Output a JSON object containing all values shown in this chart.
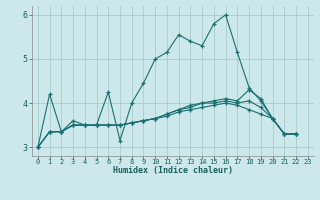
{
  "title": "",
  "xlabel": "Humidex (Indice chaleur)",
  "background_color": "#cce8ea",
  "grid_color": "#aacccc",
  "line_color": "#1a7070",
  "xlim": [
    -0.5,
    23.5
  ],
  "ylim": [
    2.8,
    6.2
  ],
  "xticks": [
    0,
    1,
    2,
    3,
    4,
    5,
    6,
    7,
    8,
    9,
    10,
    11,
    12,
    13,
    14,
    15,
    16,
    17,
    18,
    19,
    20,
    21,
    22,
    23
  ],
  "yticks": [
    3,
    4,
    5,
    6
  ],
  "series": [
    {
      "x": [
        0,
        1,
        2,
        3,
        4,
        5,
        6,
        7,
        8,
        9,
        10,
        11,
        12,
        13,
        14,
        15,
        16,
        17,
        18,
        19,
        20,
        21,
        22
      ],
      "y": [
        3.0,
        4.2,
        3.35,
        3.6,
        3.5,
        3.5,
        4.25,
        3.15,
        4.0,
        4.45,
        5.0,
        5.15,
        5.55,
        5.4,
        5.3,
        5.8,
        6.0,
        5.15,
        4.35,
        4.05,
        3.65,
        3.3,
        3.3
      ]
    },
    {
      "x": [
        0,
        1,
        2,
        3,
        4,
        5,
        6,
        7,
        8,
        9,
        10,
        11,
        12,
        13,
        14,
        15,
        16,
        17,
        18,
        19,
        20,
        21,
        22
      ],
      "y": [
        3.0,
        3.35,
        3.35,
        3.5,
        3.5,
        3.5,
        3.5,
        3.5,
        3.55,
        3.6,
        3.65,
        3.75,
        3.85,
        3.95,
        4.0,
        4.05,
        4.1,
        4.05,
        4.3,
        4.1,
        3.65,
        3.3,
        3.3
      ]
    },
    {
      "x": [
        0,
        1,
        2,
        3,
        4,
        5,
        6,
        7,
        8,
        9,
        10,
        11,
        12,
        13,
        14,
        15,
        16,
        17,
        18,
        19,
        20,
        21,
        22
      ],
      "y": [
        3.0,
        3.35,
        3.35,
        3.5,
        3.5,
        3.5,
        3.5,
        3.5,
        3.55,
        3.6,
        3.65,
        3.75,
        3.85,
        3.9,
        4.0,
        4.0,
        4.05,
        4.0,
        4.05,
        3.9,
        3.65,
        3.3,
        3.3
      ]
    },
    {
      "x": [
        0,
        1,
        2,
        3,
        4,
        5,
        6,
        7,
        8,
        9,
        10,
        11,
        12,
        13,
        14,
        15,
        16,
        17,
        18,
        19,
        20,
        21,
        22
      ],
      "y": [
        3.0,
        3.35,
        3.35,
        3.5,
        3.5,
        3.5,
        3.5,
        3.5,
        3.55,
        3.6,
        3.65,
        3.7,
        3.8,
        3.85,
        3.9,
        3.95,
        4.0,
        3.95,
        3.85,
        3.75,
        3.65,
        3.3,
        3.3
      ]
    }
  ]
}
